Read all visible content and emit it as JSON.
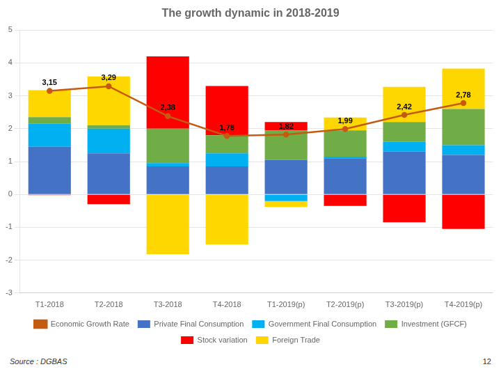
{
  "chart_data": {
    "type": "bar",
    "title": "The growth dynamic in 2018-2019",
    "categories": [
      "T1-2018",
      "T2-2018",
      "T3-2018",
      "T4-2018",
      "T1-2019(p)",
      "T2-2019(p)",
      "T3-2019(p)",
      "T4-2019(p)"
    ],
    "stacked": true,
    "series": [
      {
        "name": "Private Final Consumption",
        "color": "#4472C4",
        "values": [
          1.45,
          1.25,
          0.85,
          0.85,
          1.05,
          1.1,
          1.3,
          1.2
        ]
      },
      {
        "name": "Government Final Consumption",
        "color": "#00B0F0",
        "values": [
          0.7,
          0.75,
          0.1,
          0.4,
          -0.2,
          0.05,
          0.3,
          0.3
        ]
      },
      {
        "name": "Investment (GFCF)",
        "color": "#70AD47",
        "values": [
          0.2,
          0.1,
          1.05,
          0.55,
          0.9,
          0.8,
          0.6,
          1.1
        ]
      },
      {
        "name": "Stock variation",
        "color": "#FF0000",
        "values": [
          -0.02,
          -0.3,
          2.2,
          1.5,
          0.25,
          -0.35,
          -0.85,
          -1.05
        ]
      },
      {
        "name": "Foreign Trade",
        "color": "#FFD700",
        "values": [
          0.82,
          1.49,
          -1.82,
          -1.52,
          -0.18,
          0.39,
          1.07,
          1.23
        ]
      },
      {
        "name": "Economic Growth Rate",
        "type": "line",
        "color": "#C55A11",
        "values": [
          3.15,
          3.29,
          2.38,
          1.78,
          1.82,
          1.99,
          2.42,
          2.78
        ],
        "data_labels": true,
        "value_labels": [
          "3,15",
          "3,29",
          "2,38",
          "1,78",
          "1,82",
          "1,99",
          "2,42",
          "2,78"
        ]
      }
    ],
    "ylim": [
      -3,
      5
    ],
    "yticks": [
      -3,
      -2,
      -1,
      0,
      1,
      2,
      3,
      4,
      5
    ],
    "grid": true,
    "legend": "bottom",
    "annotations": [
      "Source : DGBAS",
      "12"
    ]
  }
}
